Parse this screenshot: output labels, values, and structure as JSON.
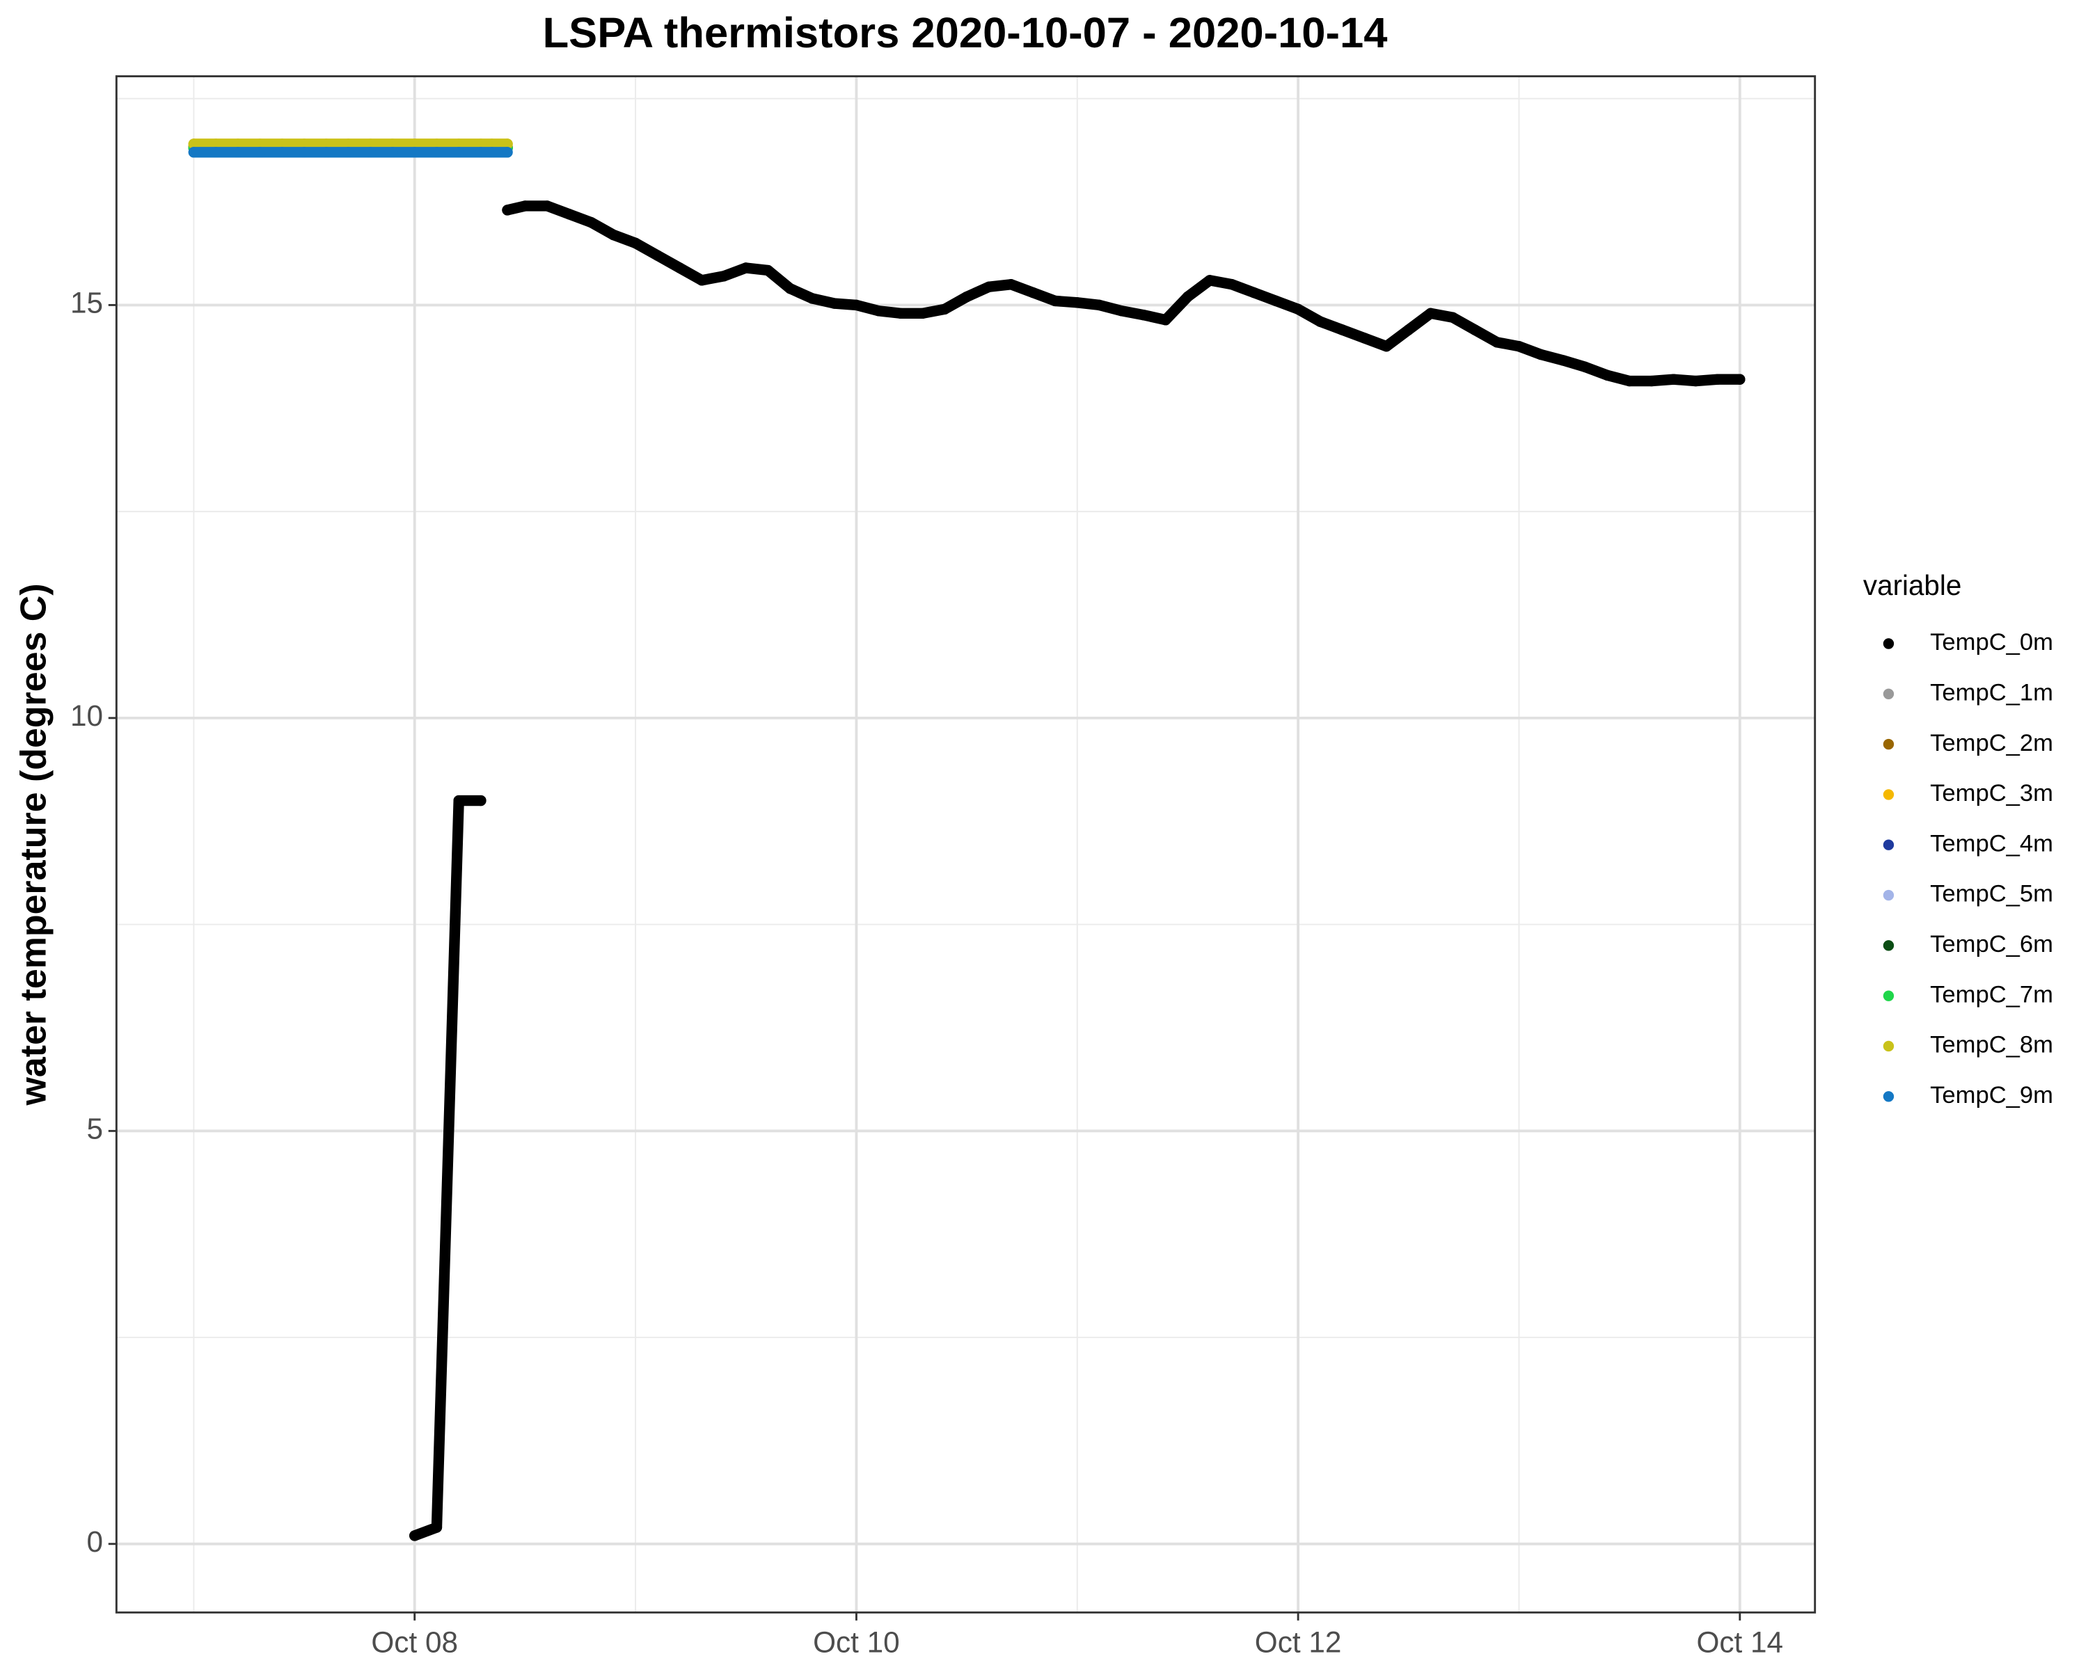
{
  "chart_data": {
    "type": "scatter",
    "title": "LSPA thermistors 2020-10-07 - 2020-10-14",
    "y_label": "water temperature (degrees C)",
    "legend_title": "variable",
    "legend_position": "right",
    "grid": true,
    "xlim": [
      6.65,
      14.34
    ],
    "ylim": [
      -0.83,
      17.77
    ],
    "xticks": [
      {
        "value": 8,
        "label": "Oct 08"
      },
      {
        "value": 10,
        "label": "Oct 10"
      },
      {
        "value": 12,
        "label": "Oct 12"
      },
      {
        "value": 14,
        "label": "Oct 14"
      }
    ],
    "minor_xticks": [
      7,
      9,
      11,
      13
    ],
    "yticks": [
      0,
      5,
      10,
      15
    ],
    "minor_yticks": [
      2.5,
      7.5,
      12.5,
      17.5
    ],
    "x": [
      7.0,
      7.1,
      7.2,
      7.3,
      7.4,
      7.5,
      7.6,
      7.7,
      7.8,
      7.9,
      8.0,
      8.1,
      8.2,
      8.3,
      8.35,
      8.42,
      8.5,
      8.6,
      8.7,
      8.8,
      8.9,
      9.0,
      9.1,
      9.2,
      9.3,
      9.4,
      9.5,
      9.6,
      9.7,
      9.8,
      9.9,
      10.0,
      10.1,
      10.2,
      10.3,
      10.4,
      10.5,
      10.6,
      10.7,
      10.8,
      10.9,
      11.0,
      11.1,
      11.2,
      11.3,
      11.4,
      11.5,
      11.6,
      11.7,
      11.8,
      11.9,
      12.0,
      12.1,
      12.2,
      12.3,
      12.4,
      12.5,
      12.6,
      12.7,
      12.8,
      12.9,
      13.0,
      13.1,
      13.2,
      13.3,
      13.4,
      13.5,
      13.6,
      13.7,
      13.8,
      13.9,
      14.0
    ],
    "series": [
      {
        "name": "TempC_0m",
        "color": "#000000",
        "values": [
          null,
          null,
          null,
          null,
          null,
          null,
          null,
          null,
          null,
          null,
          0.1,
          0.2,
          9.0,
          9.0,
          null,
          16.15,
          16.2,
          16.2,
          16.1,
          16.0,
          15.85,
          15.75,
          15.6,
          15.45,
          15.3,
          15.35,
          15.45,
          15.42,
          15.2,
          15.08,
          15.02,
          15.0,
          14.93,
          14.9,
          14.9,
          14.95,
          15.1,
          15.22,
          15.25,
          15.15,
          15.05,
          15.03,
          15.0,
          14.93,
          14.88,
          14.82,
          15.1,
          15.3,
          15.25,
          15.15,
          15.05,
          14.95,
          14.8,
          14.7,
          14.6,
          14.5,
          14.7,
          14.9,
          14.85,
          14.7,
          14.55,
          14.5,
          14.4,
          14.33,
          14.25,
          14.15,
          14.08,
          14.08,
          14.1,
          14.08,
          14.1,
          14.1
        ]
      },
      {
        "name": "TempC_1m",
        "color": "#999999",
        "values": [
          16.9,
          16.9,
          16.9,
          16.9,
          16.9,
          16.9,
          16.9,
          16.9,
          16.9,
          16.9,
          16.9,
          16.9,
          16.9,
          16.9,
          16.9,
          16.9,
          null,
          null,
          null,
          null,
          null,
          null,
          null,
          null,
          null,
          null,
          null,
          null,
          null,
          null,
          null,
          null,
          null,
          null,
          null,
          null,
          null,
          null,
          null,
          null,
          null,
          null,
          null,
          null,
          null,
          null,
          null,
          null,
          null,
          null,
          null,
          null,
          null,
          null,
          null,
          null,
          null,
          null,
          null,
          null,
          null,
          null,
          null,
          null,
          null,
          null,
          null,
          null,
          null,
          null,
          null,
          null
        ]
      },
      {
        "name": "TempC_2m",
        "color": "#996600",
        "values": [
          16.92,
          16.92,
          16.92,
          16.92,
          16.92,
          16.92,
          16.92,
          16.92,
          16.92,
          16.92,
          16.92,
          16.92,
          16.92,
          16.92,
          16.92,
          16.92,
          null,
          null,
          null,
          null,
          null,
          null,
          null,
          null,
          null,
          null,
          null,
          null,
          null,
          null,
          null,
          null,
          null,
          null,
          null,
          null,
          null,
          null,
          null,
          null,
          null,
          null,
          null,
          null,
          null,
          null,
          null,
          null,
          null,
          null,
          null,
          null,
          null,
          null,
          null,
          null,
          null,
          null,
          null,
          null,
          null,
          null,
          null,
          null,
          null,
          null,
          null,
          null,
          null,
          null,
          null,
          null
        ]
      },
      {
        "name": "TempC_3m",
        "color": "#f5b800",
        "values": [
          16.95,
          16.95,
          16.95,
          16.95,
          16.95,
          16.95,
          16.95,
          16.95,
          16.95,
          16.95,
          16.95,
          16.95,
          16.95,
          16.95,
          16.95,
          16.95,
          null,
          null,
          null,
          null,
          null,
          null,
          null,
          null,
          null,
          null,
          null,
          null,
          null,
          null,
          null,
          null,
          null,
          null,
          null,
          null,
          null,
          null,
          null,
          null,
          null,
          null,
          null,
          null,
          null,
          null,
          null,
          null,
          null,
          null,
          null,
          null,
          null,
          null,
          null,
          null,
          null,
          null,
          null,
          null,
          null,
          null,
          null,
          null,
          null,
          null,
          null,
          null,
          null,
          null,
          null,
          null
        ]
      },
      {
        "name": "TempC_4m",
        "color": "#1f3a9e",
        "values": [
          16.9,
          16.9,
          16.9,
          16.9,
          16.9,
          16.9,
          16.9,
          16.9,
          16.9,
          16.9,
          16.9,
          16.9,
          16.9,
          16.9,
          16.9,
          16.9,
          null,
          null,
          null,
          null,
          null,
          null,
          null,
          null,
          null,
          null,
          null,
          null,
          null,
          null,
          null,
          null,
          null,
          null,
          null,
          null,
          null,
          null,
          null,
          null,
          null,
          null,
          null,
          null,
          null,
          null,
          null,
          null,
          null,
          null,
          null,
          null,
          null,
          null,
          null,
          null,
          null,
          null,
          null,
          null,
          null,
          null,
          null,
          null,
          null,
          null,
          null,
          null,
          null,
          null,
          null,
          null
        ]
      },
      {
        "name": "TempC_5m",
        "color": "#a3b4e8",
        "values": [
          16.9,
          16.9,
          16.9,
          16.9,
          16.9,
          16.9,
          16.9,
          16.9,
          16.9,
          16.9,
          16.9,
          16.9,
          16.9,
          16.9,
          16.9,
          16.9,
          null,
          null,
          null,
          null,
          null,
          null,
          null,
          null,
          null,
          null,
          null,
          null,
          null,
          null,
          null,
          null,
          null,
          null,
          null,
          null,
          null,
          null,
          null,
          null,
          null,
          null,
          null,
          null,
          null,
          null,
          null,
          null,
          null,
          null,
          null,
          null,
          null,
          null,
          null,
          null,
          null,
          null,
          null,
          null,
          null,
          null,
          null,
          null,
          null,
          null,
          null,
          null,
          null,
          null,
          null,
          null
        ]
      },
      {
        "name": "TempC_6m",
        "color": "#0b4d14",
        "values": [
          16.9,
          16.9,
          16.9,
          16.9,
          16.9,
          16.9,
          16.9,
          16.9,
          16.9,
          16.9,
          16.9,
          16.9,
          16.9,
          16.9,
          16.9,
          16.9,
          null,
          null,
          null,
          null,
          null,
          null,
          null,
          null,
          null,
          null,
          null,
          null,
          null,
          null,
          null,
          null,
          null,
          null,
          null,
          null,
          null,
          null,
          null,
          null,
          null,
          null,
          null,
          null,
          null,
          null,
          null,
          null,
          null,
          null,
          null,
          null,
          null,
          null,
          null,
          null,
          null,
          null,
          null,
          null,
          null,
          null,
          null,
          null,
          null,
          null,
          null,
          null,
          null,
          null,
          null,
          null
        ]
      },
      {
        "name": "TempC_7m",
        "color": "#1fd64a",
        "values": [
          16.9,
          16.9,
          16.9,
          16.9,
          16.9,
          16.9,
          16.9,
          16.9,
          16.9,
          16.9,
          16.9,
          16.9,
          16.9,
          16.9,
          16.9,
          16.9,
          null,
          null,
          null,
          null,
          null,
          null,
          null,
          null,
          null,
          null,
          null,
          null,
          null,
          null,
          null,
          null,
          null,
          null,
          null,
          null,
          null,
          null,
          null,
          null,
          null,
          null,
          null,
          null,
          null,
          null,
          null,
          null,
          null,
          null,
          null,
          null,
          null,
          null,
          null,
          null,
          null,
          null,
          null,
          null,
          null,
          null,
          null,
          null,
          null,
          null,
          null,
          null,
          null,
          null,
          null,
          null
        ]
      },
      {
        "name": "TempC_8m",
        "color": "#c9c21a",
        "values": [
          16.95,
          16.95,
          16.95,
          16.95,
          16.95,
          16.95,
          16.95,
          16.95,
          16.95,
          16.95,
          16.95,
          16.95,
          16.95,
          16.95,
          16.95,
          16.95,
          null,
          null,
          null,
          null,
          null,
          null,
          null,
          null,
          null,
          null,
          null,
          null,
          null,
          null,
          null,
          null,
          null,
          null,
          null,
          null,
          null,
          null,
          null,
          null,
          null,
          null,
          null,
          null,
          null,
          null,
          null,
          null,
          null,
          null,
          null,
          null,
          null,
          null,
          null,
          null,
          null,
          null,
          null,
          null,
          null,
          null,
          null,
          null,
          null,
          null,
          null,
          null,
          null,
          null,
          null,
          null
        ]
      },
      {
        "name": "TempC_9m",
        "color": "#1478c4",
        "values": [
          16.85,
          16.85,
          16.85,
          16.85,
          16.85,
          16.85,
          16.85,
          16.85,
          16.85,
          16.85,
          16.85,
          16.85,
          16.85,
          16.85,
          16.85,
          16.85,
          null,
          null,
          null,
          null,
          null,
          null,
          null,
          null,
          null,
          null,
          null,
          null,
          null,
          null,
          null,
          null,
          null,
          null,
          null,
          null,
          null,
          null,
          null,
          null,
          null,
          null,
          null,
          null,
          null,
          null,
          null,
          null,
          null,
          null,
          null,
          null,
          null,
          null,
          null,
          null,
          null,
          null,
          null,
          null,
          null,
          null,
          null,
          null,
          null,
          null,
          null,
          null,
          null,
          null,
          null,
          null
        ]
      }
    ]
  }
}
